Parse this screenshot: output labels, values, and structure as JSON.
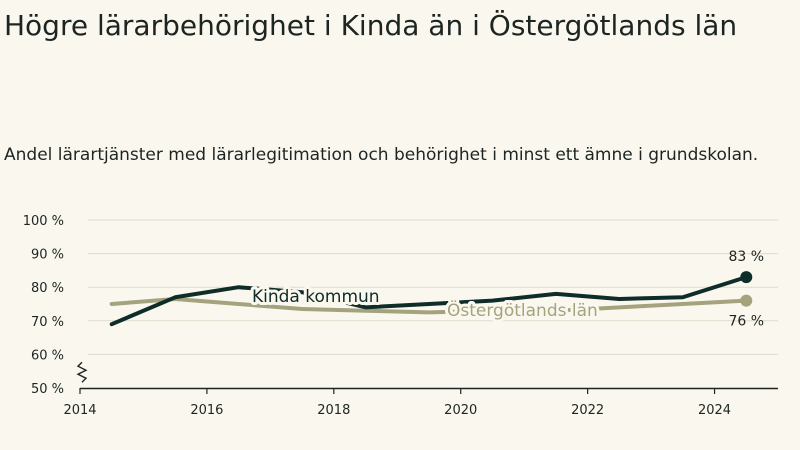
{
  "title": "Högre lärarbehörighet i Kinda än i Östergötlands län",
  "subtitle": "Andel lärartjänster med lärarlegitimation och behörighet i minst ett ämne i grundskolan.",
  "colors": {
    "background": "#faf8ee",
    "kinda": "#0e2c28",
    "lan": "#a5a27e",
    "grid": "#dedbcc",
    "axis": "#1d2523"
  },
  "chart_data": {
    "type": "line",
    "ylim": [
      50,
      100
    ],
    "xlim": [
      2014,
      2025
    ],
    "y_ticks": [
      50,
      60,
      70,
      80,
      90,
      100
    ],
    "y_tick_labels": [
      "50 %",
      "60 %",
      "70 %",
      "80 %",
      "90 %",
      "100 %"
    ],
    "x_ticks": [
      "2014",
      "2016",
      "2018",
      "2020",
      "2022",
      "2024"
    ],
    "axis_break": true,
    "grid": true,
    "x": [
      2014.5,
      2015.5,
      2016.5,
      2017.5,
      2018.5,
      2019.5,
      2020.5,
      2021.5,
      2022.5,
      2023.5,
      2024.5
    ],
    "series": [
      {
        "name": "Kinda kommun",
        "color": "#0e2c28",
        "values": [
          69,
          77,
          80,
          78.5,
          74,
          75,
          76,
          78,
          76.5,
          77,
          83
        ],
        "end_label": "83 %"
      },
      {
        "name": "Östergötlands län",
        "color": "#a5a27e",
        "values": [
          75,
          76.5,
          75,
          73.5,
          73,
          72.5,
          73,
          73,
          74,
          75,
          76
        ],
        "end_label": "76 %"
      }
    ]
  }
}
